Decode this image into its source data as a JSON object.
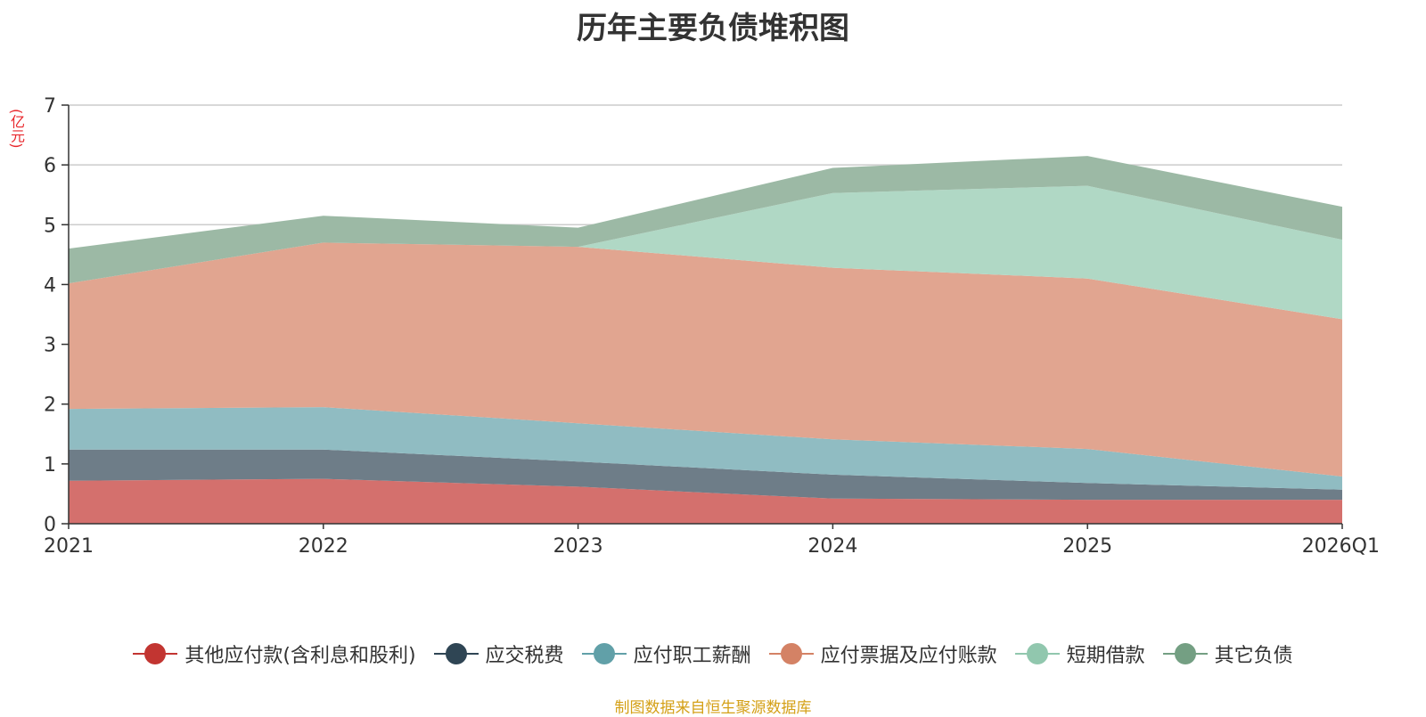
{
  "chart_data": {
    "type": "area",
    "stacked": true,
    "title": "历年主要负债堆积图",
    "ylabel": "(亿元)",
    "xlabel": "",
    "categories": [
      "2021",
      "2022",
      "2023",
      "2024",
      "2025",
      "2026Q1"
    ],
    "ylim": [
      0,
      7
    ],
    "yticks": [
      0,
      1,
      2,
      3,
      4,
      5,
      6,
      7
    ],
    "grid": true,
    "legend_position": "bottom",
    "series": [
      {
        "name": "其他应付款(含利息和股利)",
        "color": "#c23531",
        "fill": "#d4706d",
        "values": [
          0.72,
          0.75,
          0.62,
          0.42,
          0.4,
          0.4
        ]
      },
      {
        "name": "应交税费",
        "color": "#2f4554",
        "fill": "#6e7d88",
        "values": [
          0.52,
          0.49,
          0.42,
          0.4,
          0.28,
          0.17
        ]
      },
      {
        "name": "应付职工薪酬",
        "color": "#61a0a8",
        "fill": "#90bcc2",
        "values": [
          0.68,
          0.71,
          0.64,
          0.59,
          0.57,
          0.22
        ]
      },
      {
        "name": "应付票据及应付账款",
        "color": "#d48265",
        "fill": "#e1a590",
        "values": [
          2.1,
          2.75,
          2.95,
          2.87,
          2.85,
          2.63
        ]
      },
      {
        "name": "短期借款",
        "color": "#91c7ae",
        "fill": "#b0d8c5",
        "values": [
          0.0,
          0.0,
          0.0,
          1.25,
          1.55,
          1.33
        ]
      },
      {
        "name": "其它负债",
        "color": "#749f83",
        "fill": "#9cb9a5",
        "values": [
          0.58,
          0.45,
          0.32,
          0.42,
          0.5,
          0.55
        ]
      }
    ]
  },
  "source_note": "制图数据来自恒生聚源数据库"
}
